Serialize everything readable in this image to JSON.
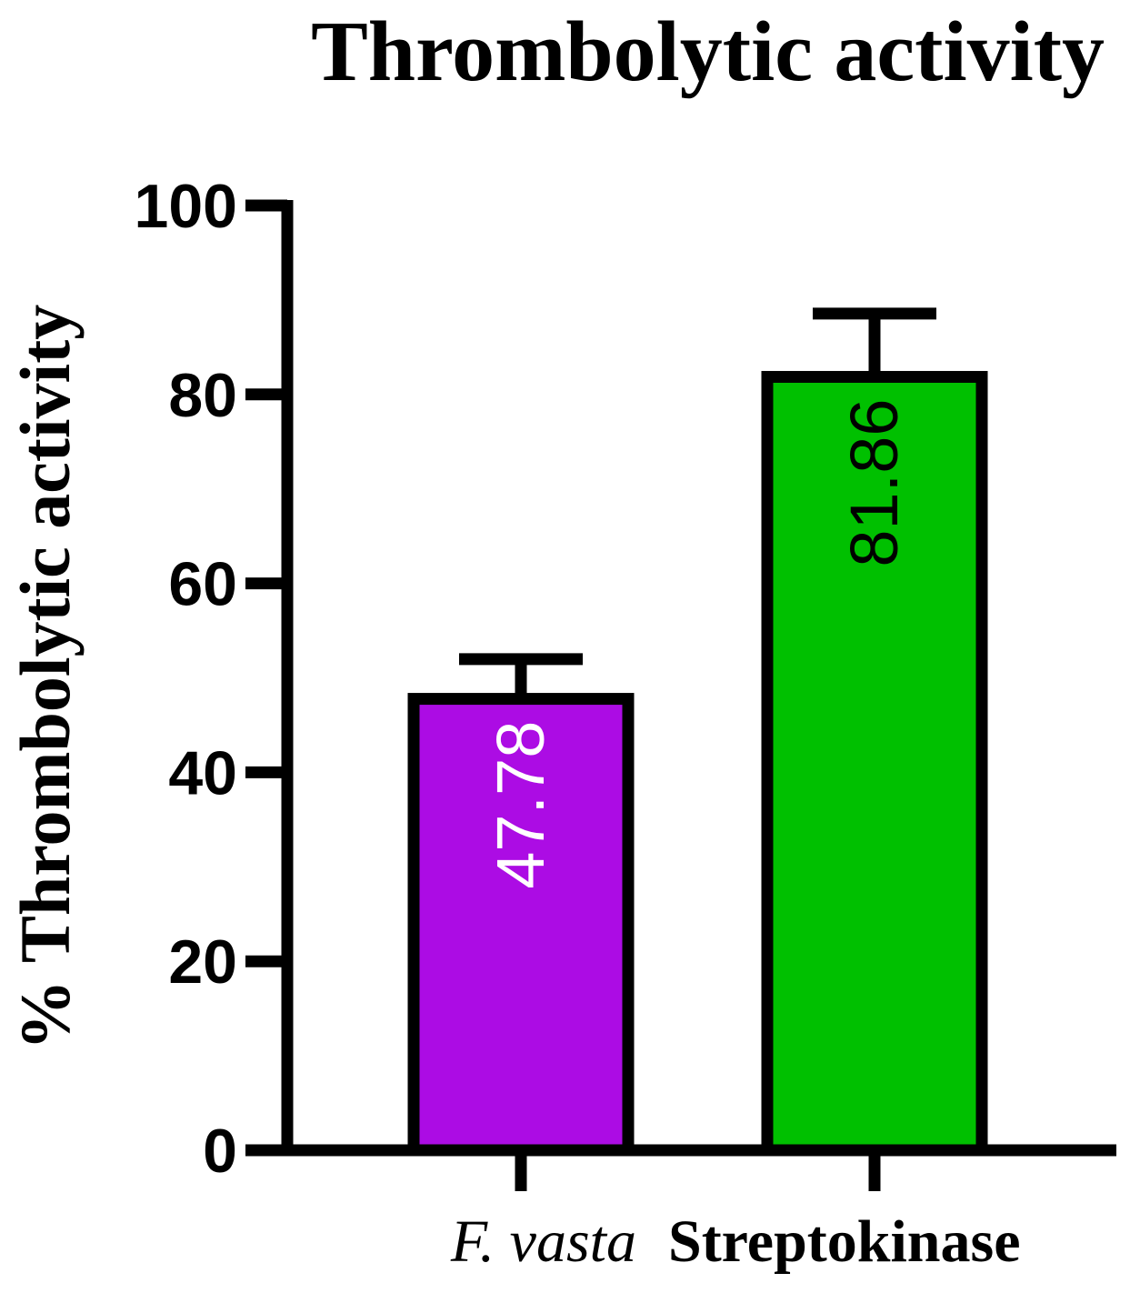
{
  "chart_data": {
    "type": "bar",
    "title": "Thrombolytic activity",
    "xlabel": "",
    "ylabel": "% Thrombolytic activity",
    "ylim": [
      0,
      100
    ],
    "yticks": [
      0,
      20,
      40,
      60,
      80,
      100
    ],
    "ytick_labels": [
      "0",
      "20",
      "40",
      "60",
      "80",
      "100"
    ],
    "categories": [
      "F. vasta",
      "Streptokinase"
    ],
    "category_styles": [
      "italic",
      "bold"
    ],
    "values": [
      47.78,
      81.86
    ],
    "errors": [
      4.2,
      6.7
    ],
    "data_labels": [
      "47.78",
      "81.86"
    ],
    "bar_colors": [
      "#ac0ce4",
      "#00c000"
    ],
    "data_label_colors": [
      "#ffffff",
      "#000000"
    ],
    "grid": false,
    "legend": "none"
  }
}
